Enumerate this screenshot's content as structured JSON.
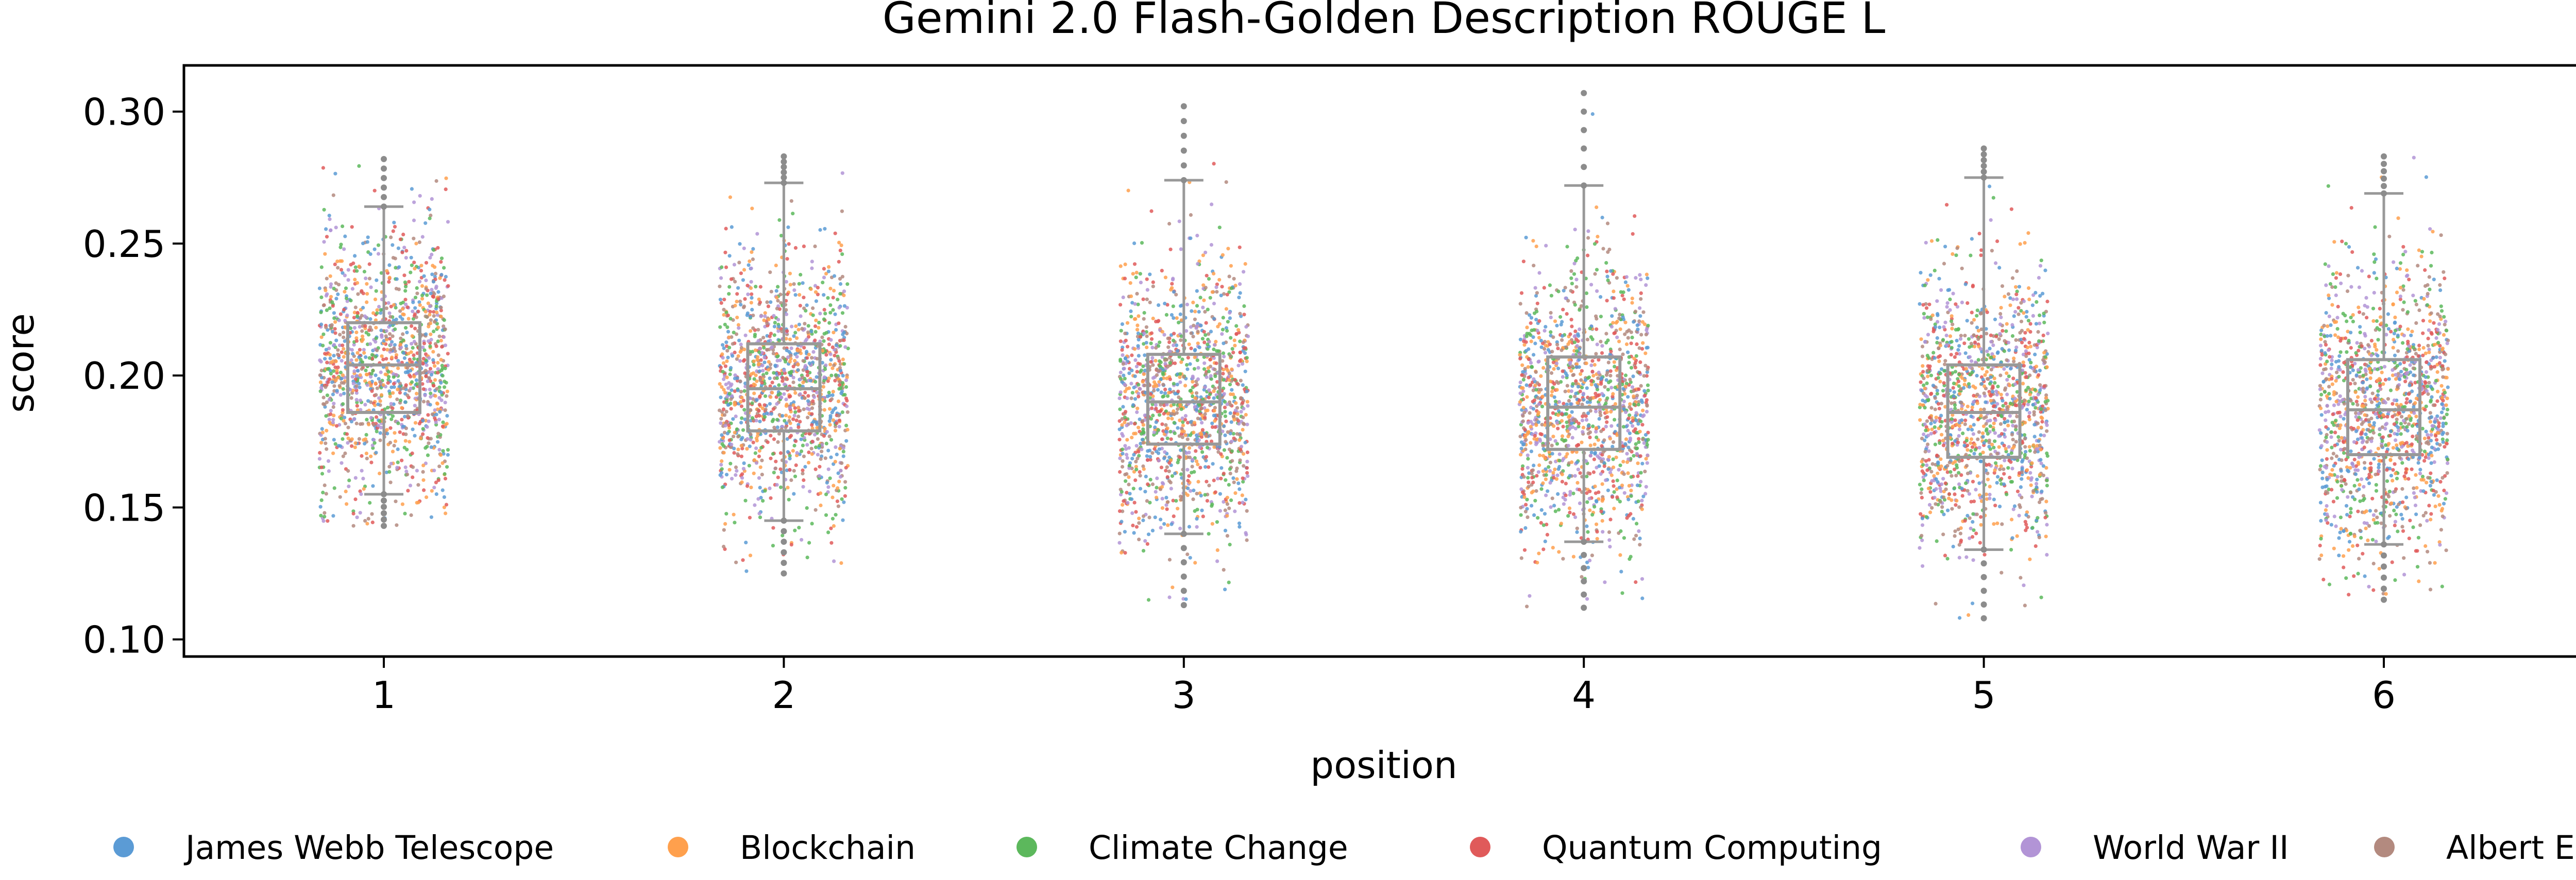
{
  "chart_data": {
    "type": "box-strip",
    "title": "Gemini 2.0 Flash-Golden Description ROUGE L",
    "xlabel": "position",
    "ylabel": "score",
    "categories": [
      "1",
      "2",
      "3",
      "4",
      "5",
      "6"
    ],
    "ylim": [
      0.0935,
      0.3175
    ],
    "yticks": [
      0.1,
      0.15,
      0.2,
      0.25,
      0.3
    ],
    "ytick_labels": [
      "0.10",
      "0.15",
      "0.20",
      "0.25",
      "0.30"
    ],
    "grid": false,
    "legend_position": "bottom",
    "box_color": "#999999",
    "boxes": [
      {
        "q1": 0.186,
        "median": 0.204,
        "q3": 0.22,
        "whisker_low": 0.155,
        "whisker_high": 0.264,
        "min": 0.143,
        "max": 0.282
      },
      {
        "q1": 0.179,
        "median": 0.195,
        "q3": 0.212,
        "whisker_low": 0.145,
        "whisker_high": 0.273,
        "min": 0.125,
        "max": 0.283
      },
      {
        "q1": 0.174,
        "median": 0.19,
        "q3": 0.208,
        "whisker_low": 0.14,
        "whisker_high": 0.274,
        "min": 0.113,
        "max": 0.302
      },
      {
        "q1": 0.172,
        "median": 0.188,
        "q3": 0.207,
        "whisker_low": 0.137,
        "whisker_high": 0.272,
        "min": 0.112,
        "max": 0.307
      },
      {
        "q1": 0.169,
        "median": 0.186,
        "q3": 0.204,
        "whisker_low": 0.134,
        "whisker_high": 0.275,
        "min": 0.108,
        "max": 0.286
      },
      {
        "q1": 0.17,
        "median": 0.187,
        "q3": 0.206,
        "whisker_low": 0.136,
        "whisker_high": 0.269,
        "min": 0.115,
        "max": 0.283
      }
    ],
    "series": [
      {
        "name": "James Webb Telescope",
        "color": "#5b9bd5"
      },
      {
        "name": "Blockchain",
        "color": "#ffa04d"
      },
      {
        "name": "Climate Change",
        "color": "#5cb85c"
      },
      {
        "name": "Quantum Computing",
        "color": "#e05a5a"
      },
      {
        "name": "World War II",
        "color": "#b294d6"
      },
      {
        "name": "Albert Einstein",
        "color": "#b38a7f"
      }
    ]
  }
}
